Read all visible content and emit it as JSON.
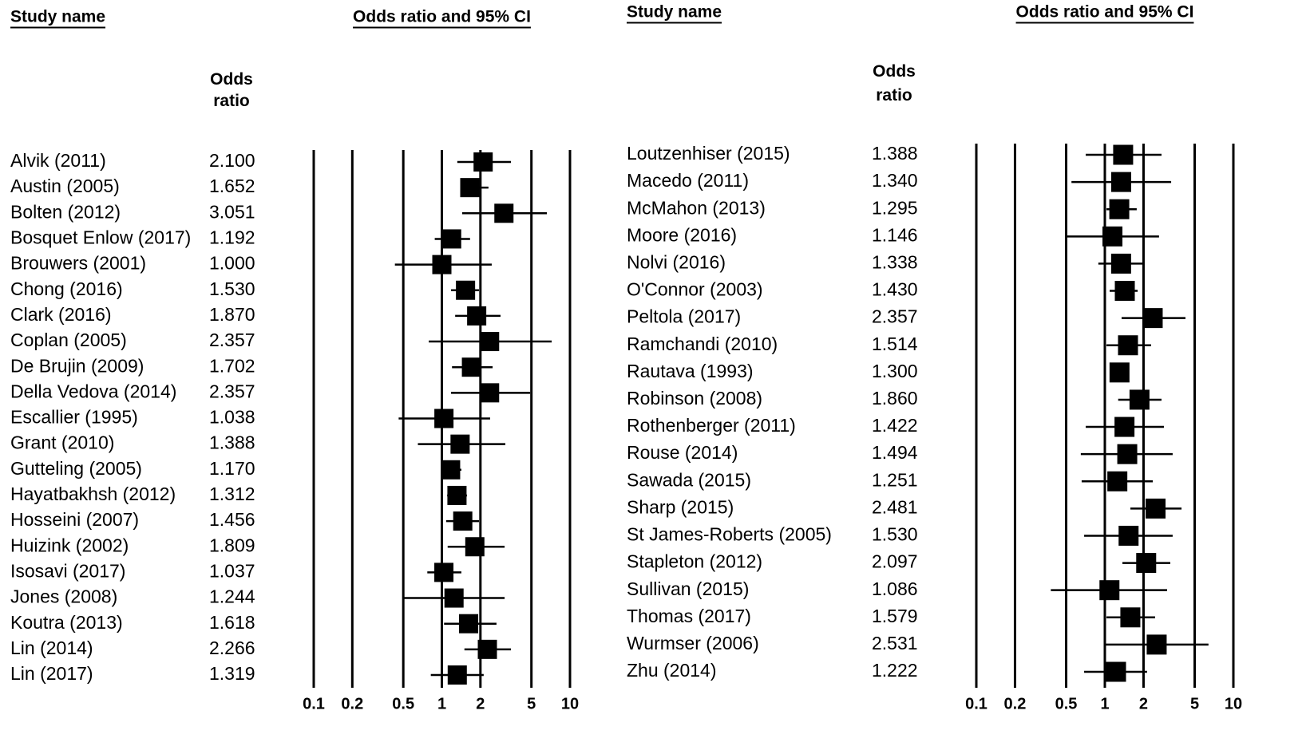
{
  "chart_data": [
    {
      "type": "forest",
      "study_header": "Study name",
      "title": "Odds ratio and 95% CI",
      "value_header": "Odds ratio",
      "categories": [
        "Alvik (2011)",
        "Austin (2005)",
        "Bolten (2012)",
        "Bosquet Enlow (2017)",
        "Brouwers (2001)",
        "Chong (2016)",
        "Clark (2016)",
        "Coplan (2005)",
        "De Brujin (2009)",
        "Della Vedova (2014)",
        "Escallier (1995)",
        "Grant (2010)",
        "Gutteling (2005)",
        "Hayatbakhsh (2012)",
        "Hosseini (2007)",
        "Huizink (2002)",
        "Isosavi (2017)",
        "Jones (2008)",
        "Koutra (2013)",
        "Lin (2014)",
        "Lin (2017)"
      ],
      "values": [
        2.1,
        1.652,
        3.051,
        1.192,
        1.0,
        1.53,
        1.87,
        2.357,
        1.702,
        2.357,
        1.038,
        1.388,
        1.17,
        1.312,
        1.456,
        1.809,
        1.037,
        1.244,
        1.618,
        2.266,
        1.319
      ],
      "value_labels": [
        "2.100",
        "1.652",
        "3.051",
        "1.192",
        "1.000",
        "1.530",
        "1.870",
        "2.357",
        "1.702",
        "2.357",
        "1.038",
        "1.388",
        "1.170",
        "1.312",
        "1.456",
        "1.809",
        "1.037",
        "1.244",
        "1.618",
        "2.266",
        "1.319"
      ],
      "ci_lower": [
        1.32,
        1.4,
        1.44,
        0.88,
        0.43,
        1.18,
        1.27,
        0.79,
        1.2,
        1.18,
        0.46,
        0.65,
        1.07,
        1.1,
        1.08,
        1.11,
        0.77,
        0.5,
        1.04,
        1.5,
        0.82
      ],
      "ci_upper": [
        3.46,
        2.31,
        6.6,
        1.66,
        2.45,
        1.95,
        2.87,
        7.2,
        2.49,
        4.89,
        2.38,
        3.13,
        1.42,
        1.57,
        1.95,
        3.09,
        1.42,
        3.09,
        2.67,
        3.46,
        2.12
      ],
      "xlim": [
        0.1,
        10
      ],
      "xticks": [
        0.1,
        0.2,
        0.5,
        1,
        2,
        5,
        10
      ],
      "log_scale": true,
      "grid": true,
      "color": "#000000"
    },
    {
      "type": "forest",
      "study_header": "Study name",
      "title": "Odds ratio and 95% CI",
      "value_header": "Odds ratio",
      "categories": [
        "Loutzenhiser (2015)",
        "Macedo (2011)",
        "McMahon (2013)",
        "Moore (2016)",
        "Nolvi (2016)",
        "O'Connor (2003)",
        "Peltola (2017)",
        "Ramchandi (2010)",
        "Rautava (1993)",
        "Robinson (2008)",
        "Rothenberger (2011)",
        "Rouse (2014)",
        "Sawada (2015)",
        "Sharp (2015)",
        "St James-Roberts (2005)",
        "Stapleton (2012)",
        "Sullivan (2015)",
        "Thomas (2017)",
        "Wurmser (2006)",
        "Zhu (2014)"
      ],
      "values": [
        1.388,
        1.34,
        1.295,
        1.146,
        1.338,
        1.43,
        2.357,
        1.514,
        1.3,
        1.86,
        1.422,
        1.494,
        1.251,
        2.481,
        1.53,
        2.097,
        1.086,
        1.579,
        2.531,
        1.222
      ],
      "value_labels": [
        "1.388",
        "1.340",
        "1.295",
        "1.146",
        "1.338",
        "1.430",
        "2.357",
        "1.514",
        "1.300",
        "1.860",
        "1.422",
        "1.494",
        "1.251",
        "2.481",
        "1.530",
        "2.097",
        "1.086",
        "1.579",
        "2.531",
        "1.222"
      ],
      "ci_lower": [
        0.71,
        0.55,
        1.03,
        0.5,
        0.89,
        1.09,
        1.35,
        1.03,
        1.12,
        1.27,
        0.71,
        0.65,
        0.66,
        1.58,
        0.69,
        1.37,
        0.38,
        1.03,
        1.01,
        0.69
      ],
      "ci_upper": [
        2.76,
        3.28,
        1.77,
        2.64,
        1.99,
        1.8,
        4.24,
        2.29,
        1.51,
        2.76,
        2.88,
        3.37,
        2.36,
        3.95,
        3.37,
        3.23,
        3.05,
        2.46,
        6.4,
        2.13
      ],
      "xlim": [
        0.1,
        10
      ],
      "xticks": [
        0.1,
        0.2,
        0.5,
        1,
        2,
        5,
        10
      ],
      "log_scale": true,
      "grid": true,
      "color": "#000000"
    }
  ]
}
